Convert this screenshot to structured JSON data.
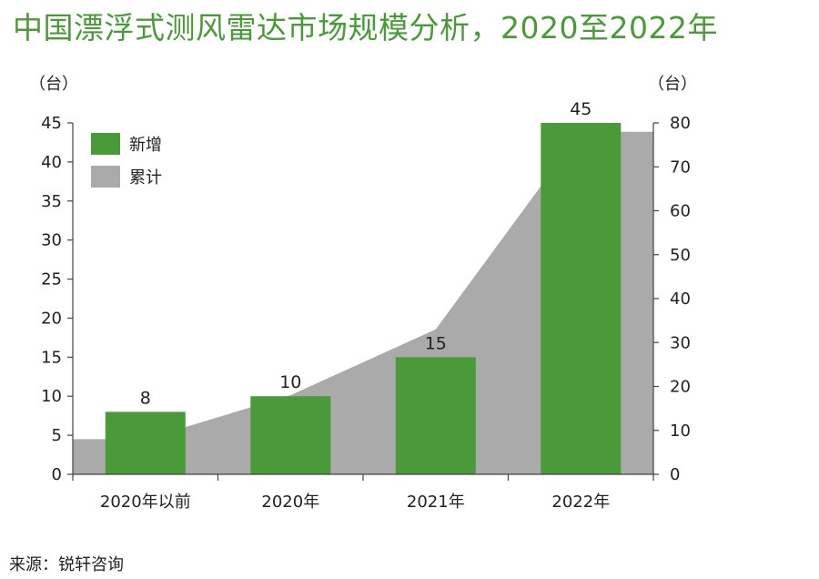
{
  "title": "中国漂浮式测风雷达市场规模分析，2020至2022年",
  "unit_left": "（台）",
  "unit_right": "（台）",
  "source": "来源：锐轩咨询",
  "colors": {
    "title": "#4a9a3a",
    "bar": "#4a9a3a",
    "area": "#aaaaaa"
  },
  "chart_data": {
    "type": "bar",
    "categories": [
      "2020年以前",
      "2020年",
      "2021年",
      "2022年"
    ],
    "series": [
      {
        "name": "新增",
        "type": "bar",
        "axis": "left",
        "values": [
          8,
          10,
          15,
          45
        ]
      },
      {
        "name": "累计",
        "type": "area",
        "axis": "right",
        "values": [
          8,
          18,
          33,
          78
        ]
      }
    ],
    "ylim_left": [
      0,
      45
    ],
    "yticks_left": [
      0,
      5,
      10,
      15,
      20,
      25,
      30,
      35,
      40,
      45
    ],
    "ylim_right": [
      0,
      80
    ],
    "yticks_right": [
      0,
      10,
      20,
      30,
      40,
      50,
      60,
      70,
      80
    ],
    "data_labels": [
      "8",
      "10",
      "15",
      "45"
    ],
    "legend": [
      "新增",
      "累计"
    ],
    "legend_position": "top-left",
    "grid": false
  }
}
